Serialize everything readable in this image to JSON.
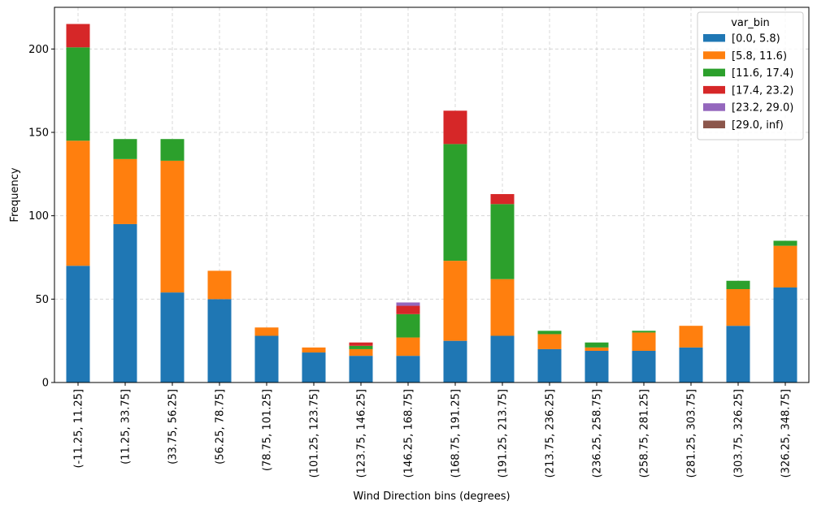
{
  "chart_data": {
    "type": "bar",
    "stacked": true,
    "title": "",
    "xlabel": "Wind Direction bins (degrees)",
    "ylabel": "Frequency",
    "ylim": [
      0,
      225
    ],
    "yticks": [
      0,
      50,
      100,
      150,
      200
    ],
    "grid": true,
    "legend_title": "var_bin",
    "legend_position": "top-right",
    "categories": [
      "(-11.25, 11.25]",
      "(11.25, 33.75]",
      "(33.75, 56.25]",
      "(56.25, 78.75]",
      "(78.75, 101.25]",
      "(101.25, 123.75]",
      "(123.75, 146.25]",
      "(146.25, 168.75]",
      "(168.75, 191.25]",
      "(191.25, 213.75]",
      "(213.75, 236.25]",
      "(236.25, 258.75]",
      "(258.75, 281.25]",
      "(281.25, 303.75]",
      "(303.75, 326.25]",
      "(326.25, 348.75]"
    ],
    "series": [
      {
        "name": "[0.0, 5.8)",
        "color": "#1f77b4",
        "values": [
          70,
          95,
          54,
          50,
          28,
          18,
          16,
          16,
          25,
          28,
          20,
          19,
          19,
          21,
          34,
          57
        ]
      },
      {
        "name": "[5.8, 11.6)",
        "color": "#ff7f0e",
        "values": [
          75,
          39,
          79,
          17,
          5,
          3,
          4,
          11,
          48,
          34,
          9,
          2,
          11,
          13,
          22,
          25
        ]
      },
      {
        "name": "[11.6, 17.4)",
        "color": "#2ca02c",
        "values": [
          56,
          12,
          13,
          0,
          0,
          0,
          2,
          14,
          70,
          45,
          2,
          3,
          1,
          0,
          5,
          3
        ]
      },
      {
        "name": "[17.4, 23.2)",
        "color": "#d62728",
        "values": [
          14,
          0,
          0,
          0,
          0,
          0,
          2,
          5,
          20,
          6,
          0,
          0,
          0,
          0,
          0,
          0
        ]
      },
      {
        "name": "[23.2, 29.0)",
        "color": "#9467bd",
        "values": [
          0,
          0,
          0,
          0,
          0,
          0,
          0,
          2,
          0,
          0,
          0,
          0,
          0,
          0,
          0,
          0
        ]
      },
      {
        "name": "[29.0, inf)",
        "color": "#8c564b",
        "values": [
          0,
          0,
          0,
          0,
          0,
          0,
          0,
          0,
          0,
          0,
          0,
          0,
          0,
          0,
          0,
          0
        ]
      }
    ]
  }
}
